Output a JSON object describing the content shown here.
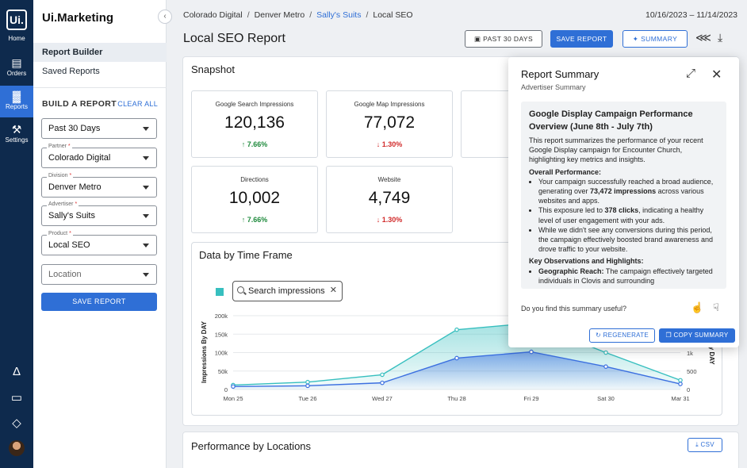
{
  "rail": {
    "logo": "Ui.",
    "logo_caption": "Home",
    "items": [
      {
        "icon": "orders-icon",
        "glyph": "▤",
        "label": "Orders"
      },
      {
        "icon": "reports-icon",
        "glyph": "▓",
        "label": "Reports"
      },
      {
        "icon": "settings-icon",
        "glyph": "⚒",
        "label": "Settings"
      }
    ],
    "footer": [
      {
        "icon": "bell-icon",
        "glyph": "Δ"
      },
      {
        "icon": "chat-icon",
        "glyph": "▭"
      },
      {
        "icon": "graduation-cap-icon",
        "glyph": "◇"
      }
    ]
  },
  "sidebar": {
    "brand": "Ui.Marketing",
    "nav": [
      "Report Builder",
      "Saved Reports"
    ],
    "build_title": "BUILD A REPORT",
    "clear_all": "CLEAR ALL",
    "fields": [
      {
        "label": "",
        "value": "Past 30 Days"
      },
      {
        "label": "Partner",
        "value": "Colorado Digital"
      },
      {
        "label": "Division",
        "value": "Denver Metro"
      },
      {
        "label": "Advertiser",
        "value": "Sally's Suits"
      },
      {
        "label": "Product",
        "value": "Local SEO"
      },
      {
        "label": "",
        "placeholder": "Location"
      }
    ],
    "save_label": "SAVE REPORT"
  },
  "header": {
    "breadcrumb": [
      "Colorado Digital",
      "Denver Metro",
      "Sally's Suits",
      "Local SEO"
    ],
    "date_range": "10/16/2023 – 11/14/2023",
    "title": "Local SEO Report",
    "past_30_label": "PAST 30 DAYS",
    "save_label": "SAVE REPORT",
    "summary_label": "SUMMARY"
  },
  "snapshot": {
    "title": "Snapshot",
    "stats": [
      {
        "label": "Google Search Impressions",
        "value": "120,136",
        "delta": "↑ 7.66%",
        "trend": "up"
      },
      {
        "label": "Google Map Impressions",
        "value": "77,072",
        "delta": "↓ 1.30%",
        "trend": "down"
      },
      {
        "label": "Directions",
        "value": "10,002",
        "delta": "↑ 7.66%",
        "trend": "up"
      },
      {
        "label": "Website",
        "value": "4,749",
        "delta": "↓ 1.30%",
        "trend": "down"
      }
    ]
  },
  "timeframe": {
    "title": "Data by Time Frame",
    "chip_label": "Search impressions"
  },
  "chart_data": {
    "type": "area",
    "categories": [
      "Mon 25",
      "Tue 26",
      "Wed 27",
      "Thu 28",
      "Fri 29",
      "Sat 30",
      "Mar 31"
    ],
    "ylabel": "Impressions By DAY",
    "y2label": "By DAY",
    "ylim": [
      0,
      200000
    ],
    "y_ticks": [
      "0",
      "50k",
      "100k",
      "150k",
      "200k"
    ],
    "y2_ticks": [
      "0",
      "500",
      "1k"
    ],
    "series": [
      {
        "name": "Search impressions",
        "color": "#37bfbf",
        "values": [
          12000,
          20000,
          40000,
          162000,
          180000,
          100000,
          25000
        ]
      },
      {
        "values": [
          8000,
          10000,
          18000,
          85000,
          102000,
          62000,
          15000
        ],
        "color": "#3b6fe0"
      }
    ]
  },
  "locations": {
    "title": "Performance by Locations",
    "csv_label": "CSV"
  },
  "summary": {
    "title": "Report Summary",
    "subtitle": "Advertiser Summary",
    "heading": "Google Display Campaign Performance Overview (June 8th - July 7th)",
    "intro": "This report summarizes the performance of your recent Google Display campaign for Encounter Church, highlighting key metrics and insights.",
    "overall_title": "Overall Performance:",
    "b1_pre": "Your campaign successfully reached a broad audience, generating over ",
    "b1_bold": "73,472 impressions",
    "b1_post": " across various websites and apps.",
    "b2_pre": "This exposure led to ",
    "b2_bold": "378 clicks",
    "b2_post": ", indicating a healthy level of user engagement with your ads.",
    "b3": "While we didn't see any conversions during this period, the campaign effectively boosted brand awareness and drove traffic to your website.",
    "key_title": "Key Observations and Highlights:",
    "k1_bold": "Geographic Reach:",
    "k1_post": " The campaign effectively targeted individuals in Clovis and surrounding",
    "question": "Do you find this summary useful?",
    "regenerate_label": "REGENERATE",
    "copy_label": "COPY SUMMARY"
  },
  "colors": {
    "accent": "#2f6fd6",
    "rail": "#0e2a4d",
    "teal": "#37bfbf",
    "up": "#1e8a3c",
    "down": "#d12b2b"
  }
}
